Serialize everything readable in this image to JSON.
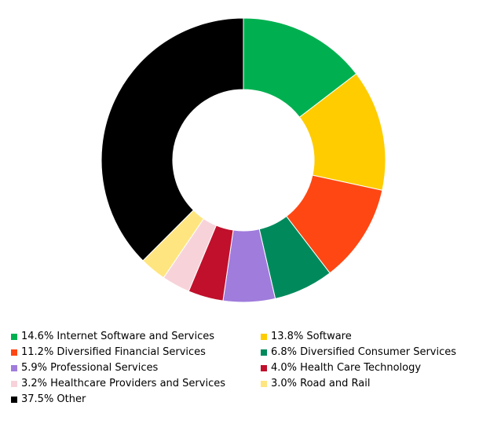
{
  "chart_data": {
    "type": "pie",
    "style": "donut",
    "title": "",
    "legend_placement": "bottom",
    "slices": [
      {
        "label": "14.6% Internet Software and Services",
        "value": 14.6,
        "color": "#00B050"
      },
      {
        "label": "13.8% Software",
        "value": 13.8,
        "color": "#FFCC00"
      },
      {
        "label": "11.2% Diversified Financial Services",
        "value": 11.2,
        "color": "#FF4713"
      },
      {
        "label": "6.8% Diversified Consumer Services",
        "value": 6.8,
        "color": "#008A5C"
      },
      {
        "label": "5.9% Professional Services",
        "value": 5.9,
        "color": "#A07CDC"
      },
      {
        "label": "4.0% Health Care Technology",
        "value": 4.0,
        "color": "#C0102C"
      },
      {
        "label": "3.2% Healthcare Providers and Services",
        "value": 3.2,
        "color": "#F7D3D9"
      },
      {
        "label": "3.0% Road and Rail",
        "value": 3.0,
        "color": "#FFE57F"
      },
      {
        "label": "37.5% Other",
        "value": 37.5,
        "color": "#000000"
      }
    ]
  }
}
